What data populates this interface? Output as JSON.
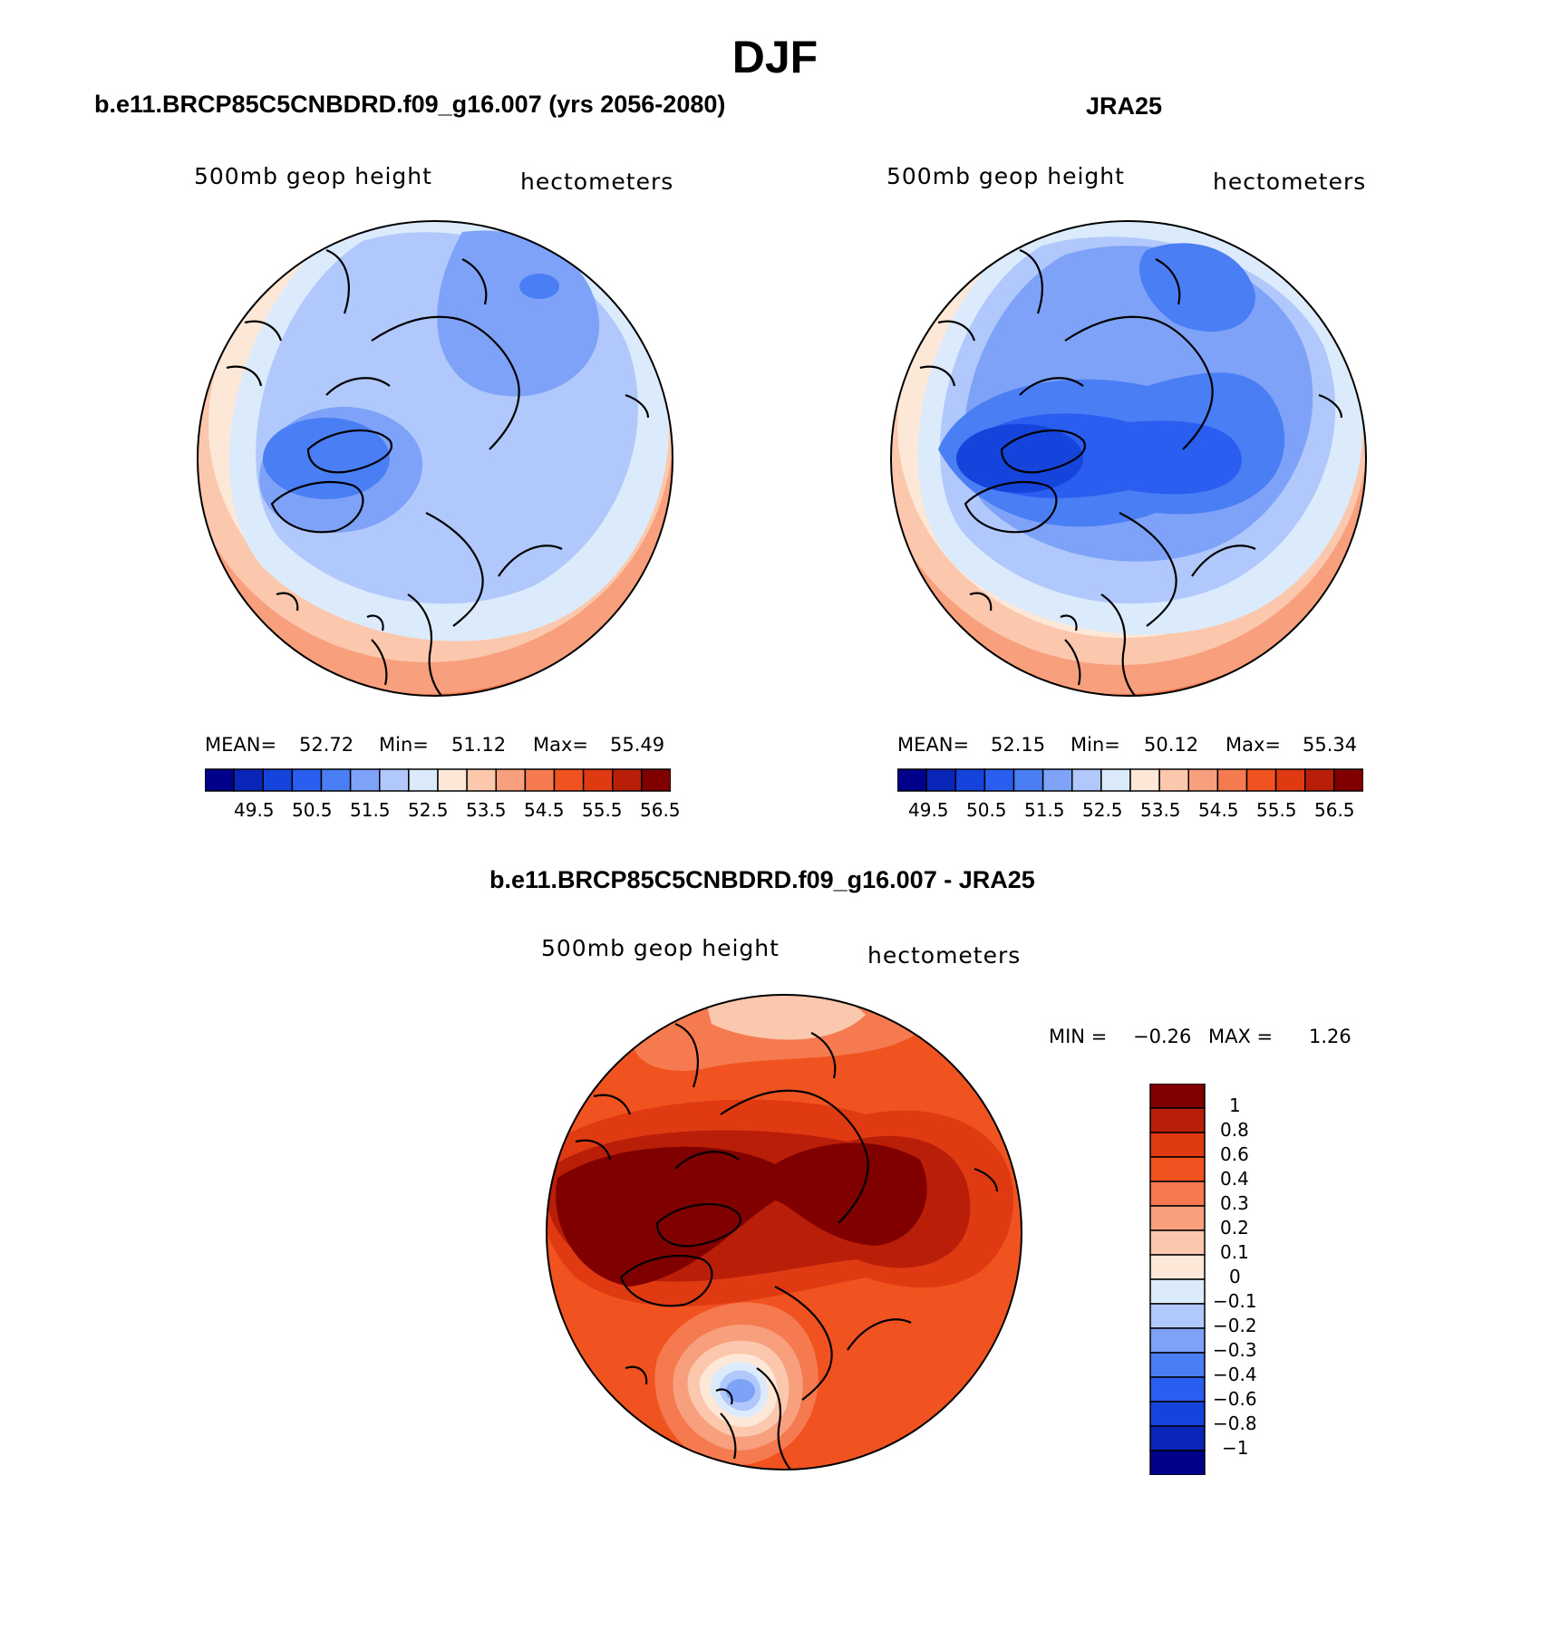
{
  "figure": {
    "title": "DJF",
    "panels": [
      {
        "id": "model",
        "title": "b.e11.BRCP85C5CNBDRD.f09_g16.007 (yrs 2056-2080)",
        "left_label": "500mb geop height",
        "right_label": "hectometers",
        "stats": {
          "mean_label": "MEAN=",
          "mean": "52.72",
          "min_label": "Min=",
          "min": "51.12",
          "max_label": "Max=",
          "max": "55.49"
        },
        "colorbar_ticks": [
          "49.5",
          "50.5",
          "51.5",
          "52.5",
          "53.5",
          "54.5",
          "55.5",
          "56.5"
        ]
      },
      {
        "id": "obs",
        "title": "JRA25",
        "left_label": "500mb geop height",
        "right_label": "hectometers",
        "stats": {
          "mean_label": "MEAN=",
          "mean": "52.15",
          "min_label": "Min=",
          "min": "50.12",
          "max_label": "Max=",
          "max": "55.34"
        },
        "colorbar_ticks": [
          "49.5",
          "50.5",
          "51.5",
          "52.5",
          "53.5",
          "54.5",
          "55.5",
          "56.5"
        ]
      },
      {
        "id": "diff",
        "title": "b.e11.BRCP85C5CNBDRD.f09_g16.007 - JRA25",
        "left_label": "500mb geop height",
        "right_label": "hectometers",
        "stats": {
          "min_label": "MIN =",
          "min": "−0.26",
          "max_label": "MAX =",
          "max": "1.26"
        },
        "colorbar_ticks": [
          "1",
          "0.8",
          "0.6",
          "0.4",
          "0.3",
          "0.2",
          "0.1",
          "0",
          "−0.1",
          "−0.2",
          "−0.3",
          "−0.4",
          "−0.6",
          "−0.8",
          "−1"
        ]
      }
    ],
    "colors": {
      "abs_scale": [
        "#00008b",
        "#0a26b8",
        "#1444dc",
        "#2a5ef0",
        "#4a7ef5",
        "#7ea2f8",
        "#b0c8fb",
        "#dcebfc",
        "#fde8d8",
        "#fbc8ad",
        "#f8a07d",
        "#f57a50",
        "#f0531f",
        "#e03a12",
        "#b81e08",
        "#800000"
      ],
      "diff_scale": [
        "#00008b",
        "#0a26b8",
        "#1444dc",
        "#2a5ef0",
        "#4a7ef5",
        "#7ea2f8",
        "#b0c8fb",
        "#dcebfc",
        "#fde8d8",
        "#fbc8ad",
        "#f8a07d",
        "#f57a50",
        "#f0531f",
        "#e03a12",
        "#b81e08",
        "#800000"
      ]
    }
  }
}
